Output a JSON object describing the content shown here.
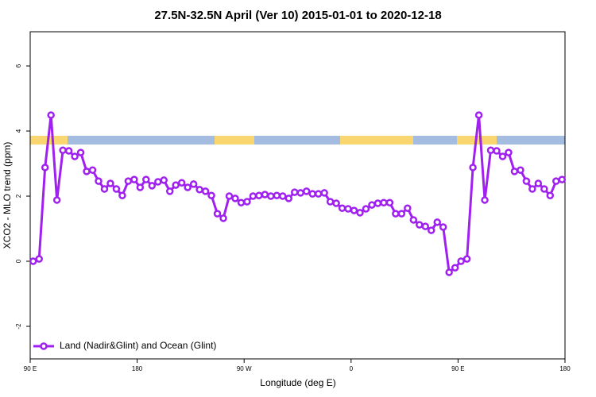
{
  "chart_data": {
    "type": "line",
    "title": "27.5N-32.5N April (Ver 10)   2015-01-01 to 2020-12-18",
    "x_label": "Longitude (deg E)",
    "y_label": "XCO2 - MLO trend (ppm)",
    "x": [
      92.5,
      97.5,
      102.5,
      107.5,
      112.5,
      117.5,
      122.5,
      127.5,
      132.5,
      137.5,
      142.5,
      147.5,
      152.5,
      157.5,
      162.5,
      167.5,
      172.5,
      177.5,
      182.5,
      187.5,
      192.5,
      197.5,
      202.5,
      207.5,
      212.5,
      217.5,
      222.5,
      227.5,
      232.5,
      237.5,
      242.5,
      247.5,
      252.5,
      257.5,
      262.5,
      267.5,
      272.5,
      277.5,
      282.5,
      287.5,
      292.5,
      297.5,
      302.5,
      307.5,
      312.5,
      317.5,
      322.5,
      327.5,
      332.5,
      337.5,
      342.5,
      347.5,
      352.5,
      357.5,
      362.5,
      367.5,
      372.5,
      377.5,
      382.5,
      387.5,
      392.5,
      397.5,
      402.5,
      407.5,
      412.5,
      417.5,
      422.5,
      427.5,
      432.5,
      437.5,
      442.5,
      447.5,
      452.5,
      457.5,
      462.5,
      467.5,
      472.5,
      477.5,
      482.5,
      487.5,
      492.5,
      497.5,
      502.5,
      507.5,
      512.5,
      517.5,
      522.5,
      527.5,
      532.5,
      537.5
    ],
    "series": [
      {
        "name": "Land (Nadir&Glint) and Ocean (Glint)",
        "color": "#a020f0",
        "values": [
          0.0,
          0.07,
          2.88,
          4.49,
          1.88,
          3.41,
          3.39,
          3.22,
          3.34,
          2.76,
          2.8,
          2.46,
          2.22,
          2.39,
          2.22,
          2.02,
          2.46,
          2.51,
          2.27,
          2.51,
          2.32,
          2.44,
          2.49,
          2.15,
          2.34,
          2.41,
          2.27,
          2.37,
          2.2,
          2.15,
          2.02,
          1.46,
          1.32,
          2.0,
          1.93,
          1.8,
          1.83,
          2.0,
          2.02,
          2.05,
          2.0,
          2.02,
          2.0,
          1.93,
          2.12,
          2.1,
          2.15,
          2.07,
          2.07,
          2.1,
          1.83,
          1.78,
          1.63,
          1.61,
          1.56,
          1.49,
          1.61,
          1.73,
          1.78,
          1.8,
          1.8,
          1.46,
          1.46,
          1.63,
          1.27,
          1.12,
          1.07,
          0.95,
          1.2,
          1.05,
          -0.34,
          -0.2,
          0.0,
          0.07,
          2.88,
          4.49,
          1.88,
          3.41,
          3.39,
          3.22,
          3.34,
          2.76,
          2.8,
          2.46,
          2.22,
          2.39,
          2.22,
          2.02,
          2.46,
          2.51
        ]
      }
    ],
    "xlim": [
      90,
      540
    ],
    "xticks": [
      {
        "value": 90,
        "label": "90 E"
      },
      180,
      {
        "value": 270,
        "label": "90 W"
      },
      {
        "value": 360,
        "label": "0"
      },
      {
        "value": 450,
        "label": "90 E"
      },
      {
        "value": 540,
        "label": "180"
      }
    ],
    "ylim": [
      -3,
      7.05
    ],
    "yticks": [
      -2,
      0,
      2,
      4,
      6
    ],
    "legend": "bottom-left"
  }
}
